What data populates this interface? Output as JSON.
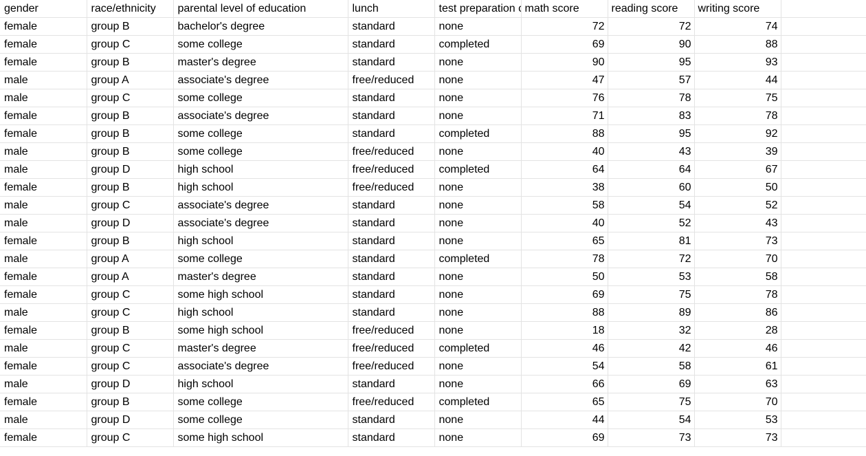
{
  "columns": [
    "gender",
    "race/ethnicity",
    "parental level of education",
    "lunch",
    "test preparation course",
    "math score",
    "reading score",
    "writing score"
  ],
  "rows": [
    [
      "female",
      "group B",
      "bachelor's degree",
      "standard",
      "none",
      "72",
      "72",
      "74"
    ],
    [
      "female",
      "group C",
      "some college",
      "standard",
      "completed",
      "69",
      "90",
      "88"
    ],
    [
      "female",
      "group B",
      "master's degree",
      "standard",
      "none",
      "90",
      "95",
      "93"
    ],
    [
      "male",
      "group A",
      "associate's degree",
      "free/reduced",
      "none",
      "47",
      "57",
      "44"
    ],
    [
      "male",
      "group C",
      "some college",
      "standard",
      "none",
      "76",
      "78",
      "75"
    ],
    [
      "female",
      "group B",
      "associate's degree",
      "standard",
      "none",
      "71",
      "83",
      "78"
    ],
    [
      "female",
      "group B",
      "some college",
      "standard",
      "completed",
      "88",
      "95",
      "92"
    ],
    [
      "male",
      "group B",
      "some college",
      "free/reduced",
      "none",
      "40",
      "43",
      "39"
    ],
    [
      "male",
      "group D",
      "high school",
      "free/reduced",
      "completed",
      "64",
      "64",
      "67"
    ],
    [
      "female",
      "group B",
      "high school",
      "free/reduced",
      "none",
      "38",
      "60",
      "50"
    ],
    [
      "male",
      "group C",
      "associate's degree",
      "standard",
      "none",
      "58",
      "54",
      "52"
    ],
    [
      "male",
      "group D",
      "associate's degree",
      "standard",
      "none",
      "40",
      "52",
      "43"
    ],
    [
      "female",
      "group B",
      "high school",
      "standard",
      "none",
      "65",
      "81",
      "73"
    ],
    [
      "male",
      "group A",
      "some college",
      "standard",
      "completed",
      "78",
      "72",
      "70"
    ],
    [
      "female",
      "group A",
      "master's degree",
      "standard",
      "none",
      "50",
      "53",
      "58"
    ],
    [
      "female",
      "group C",
      "some high school",
      "standard",
      "none",
      "69",
      "75",
      "78"
    ],
    [
      "male",
      "group C",
      "high school",
      "standard",
      "none",
      "88",
      "89",
      "86"
    ],
    [
      "female",
      "group B",
      "some high school",
      "free/reduced",
      "none",
      "18",
      "32",
      "28"
    ],
    [
      "male",
      "group C",
      "master's degree",
      "free/reduced",
      "completed",
      "46",
      "42",
      "46"
    ],
    [
      "female",
      "group C",
      "associate's degree",
      "free/reduced",
      "none",
      "54",
      "58",
      "61"
    ],
    [
      "male",
      "group D",
      "high school",
      "standard",
      "none",
      "66",
      "69",
      "63"
    ],
    [
      "female",
      "group B",
      "some college",
      "free/reduced",
      "completed",
      "65",
      "75",
      "70"
    ],
    [
      "male",
      "group D",
      "some college",
      "standard",
      "none",
      "44",
      "54",
      "53"
    ],
    [
      "female",
      "group C",
      "some high school",
      "standard",
      "none",
      "69",
      "73",
      "73"
    ]
  ]
}
